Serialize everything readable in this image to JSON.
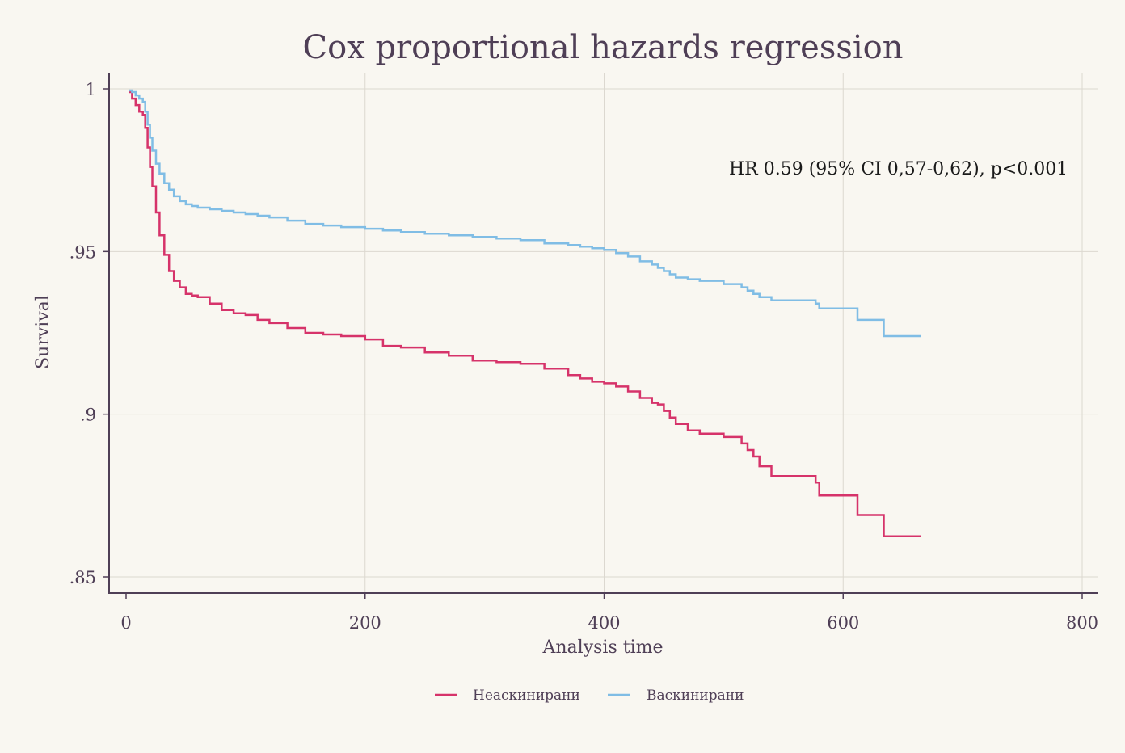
{
  "chart_data": {
    "type": "line",
    "title": "Cox proportional hazards regression",
    "xlabel": "Analysis time",
    "ylabel": "Survival",
    "xlim": [
      0,
      800
    ],
    "ylim": [
      0.85,
      1.0
    ],
    "xticks": [
      0,
      200,
      400,
      600,
      800
    ],
    "xtick_labels": [
      "0",
      "200",
      "400",
      "600",
      "800"
    ],
    "yticks": [
      0.85,
      0.9,
      0.95,
      1.0
    ],
    "ytick_labels": [
      ".85",
      ".9",
      ".95",
      "1"
    ],
    "grid": true,
    "legend_position": "bottom",
    "annotation": "HR 0.59 (95% CI 0,57-0,62), p<0.001",
    "colors": {
      "background": "#f9f7f1",
      "axis": "#4f3f56",
      "grid": "#dcd8d0",
      "text": "#4f3f56",
      "annotation": "#1a1a1a"
    },
    "series": [
      {
        "name": "Неаскинирани",
        "color": "#d6336a",
        "x": [
          2,
          5,
          8,
          11,
          14,
          16,
          18,
          20,
          22,
          25,
          28,
          32,
          36,
          40,
          45,
          50,
          55,
          60,
          70,
          80,
          90,
          100,
          110,
          120,
          135,
          150,
          165,
          180,
          200,
          215,
          230,
          250,
          270,
          290,
          310,
          330,
          350,
          370,
          380,
          390,
          400,
          410,
          420,
          430,
          440,
          445,
          450,
          455,
          460,
          470,
          480,
          500,
          515,
          520,
          525,
          530,
          540,
          560,
          577,
          580,
          610,
          612,
          632,
          634,
          665
        ],
        "y": [
          0.999,
          0.997,
          0.995,
          0.993,
          0.992,
          0.988,
          0.982,
          0.976,
          0.97,
          0.962,
          0.955,
          0.949,
          0.944,
          0.941,
          0.939,
          0.937,
          0.9365,
          0.936,
          0.934,
          0.932,
          0.931,
          0.9305,
          0.929,
          0.928,
          0.9265,
          0.925,
          0.9245,
          0.924,
          0.923,
          0.921,
          0.9205,
          0.919,
          0.918,
          0.9165,
          0.916,
          0.9155,
          0.914,
          0.912,
          0.911,
          0.91,
          0.9095,
          0.9085,
          0.907,
          0.905,
          0.9035,
          0.903,
          0.901,
          0.899,
          0.897,
          0.895,
          0.894,
          0.893,
          0.891,
          0.889,
          0.887,
          0.884,
          0.881,
          0.881,
          0.879,
          0.875,
          0.875,
          0.869,
          0.869,
          0.8625,
          0.8625
        ]
      },
      {
        "name": "Васкинирани",
        "color": "#80bde5",
        "x": [
          2,
          5,
          8,
          11,
          14,
          16,
          18,
          20,
          22,
          25,
          28,
          32,
          36,
          40,
          45,
          50,
          55,
          60,
          70,
          80,
          90,
          100,
          110,
          120,
          135,
          150,
          165,
          180,
          200,
          215,
          230,
          250,
          270,
          290,
          310,
          330,
          350,
          370,
          380,
          390,
          400,
          410,
          420,
          430,
          440,
          445,
          450,
          455,
          460,
          470,
          480,
          500,
          515,
          520,
          525,
          530,
          540,
          560,
          577,
          580,
          610,
          612,
          632,
          634,
          665
        ],
        "y": [
          0.9995,
          0.999,
          0.998,
          0.997,
          0.996,
          0.993,
          0.989,
          0.985,
          0.981,
          0.977,
          0.974,
          0.971,
          0.969,
          0.967,
          0.9655,
          0.9645,
          0.964,
          0.9635,
          0.963,
          0.9625,
          0.962,
          0.9615,
          0.961,
          0.9605,
          0.9595,
          0.9585,
          0.958,
          0.9575,
          0.957,
          0.9565,
          0.956,
          0.9555,
          0.955,
          0.9545,
          0.954,
          0.9535,
          0.9525,
          0.952,
          0.9515,
          0.951,
          0.9505,
          0.9495,
          0.9485,
          0.947,
          0.946,
          0.945,
          0.944,
          0.943,
          0.942,
          0.9415,
          0.941,
          0.94,
          0.939,
          0.938,
          0.937,
          0.936,
          0.935,
          0.935,
          0.934,
          0.9325,
          0.9325,
          0.929,
          0.929,
          0.924,
          0.924
        ]
      }
    ]
  }
}
